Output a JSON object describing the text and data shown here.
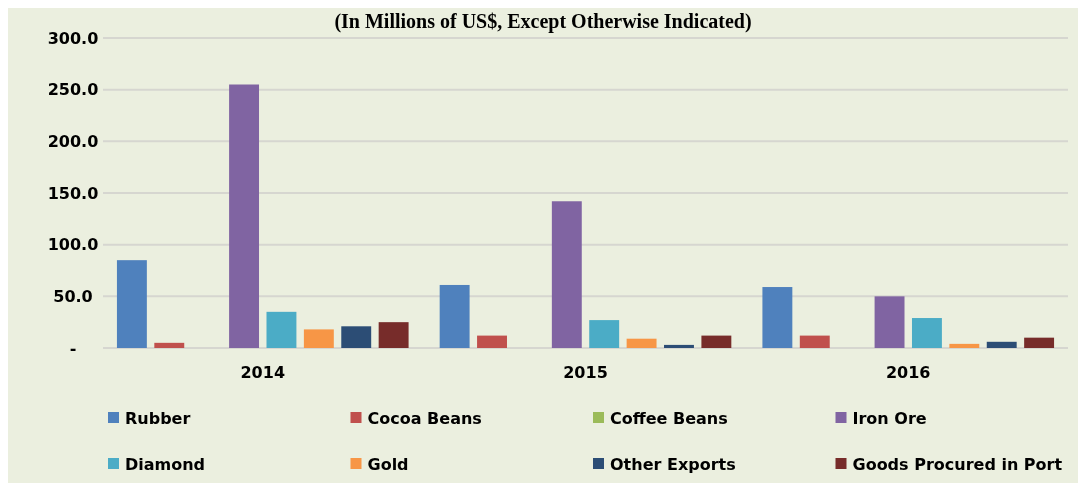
{
  "chart_data": {
    "type": "bar",
    "title": "(In Millions of US$, Except Otherwise Indicated)",
    "categories": [
      "2014",
      "2015",
      "2016"
    ],
    "series": [
      {
        "name": "Rubber",
        "color": "#4f81bd",
        "values": [
          85,
          61,
          59
        ]
      },
      {
        "name": "Cocoa Beans",
        "color": "#c0504d",
        "values": [
          5,
          12,
          12
        ]
      },
      {
        "name": "Coffee Beans",
        "color": "#9bbb59",
        "values": [
          0,
          0,
          0
        ]
      },
      {
        "name": "Iron Ore",
        "color": "#8064a2",
        "values": [
          255,
          142,
          50
        ]
      },
      {
        "name": "Diamond",
        "color": "#4bacc6",
        "values": [
          35,
          27,
          29
        ]
      },
      {
        "name": "Gold",
        "color": "#f79646",
        "values": [
          18,
          9,
          4
        ]
      },
      {
        "name": "Other Exports",
        "color": "#2c4d75",
        "values": [
          21,
          3,
          6
        ]
      },
      {
        "name": "Goods Procured in Port",
        "color": "#772c2a",
        "values": [
          25,
          12,
          10
        ]
      }
    ],
    "ylim": [
      0,
      300
    ],
    "yticks": [
      {
        "value": 0,
        "label": "-"
      },
      {
        "value": 50,
        "label": "50.0"
      },
      {
        "value": 100,
        "label": "100.0"
      },
      {
        "value": 150,
        "label": "150.0"
      },
      {
        "value": 200,
        "label": "200.0"
      },
      {
        "value": 250,
        "label": "250.0"
      },
      {
        "value": 300,
        "label": "300.0"
      }
    ],
    "grid": "y",
    "legend": "bottom"
  }
}
